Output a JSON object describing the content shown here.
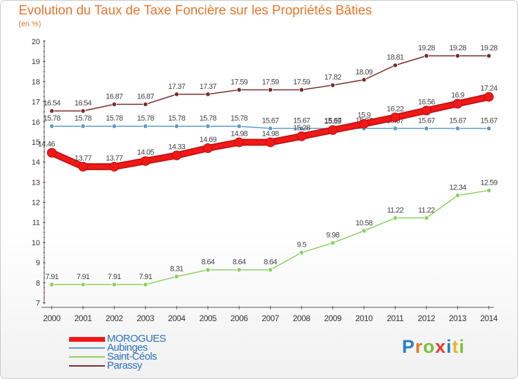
{
  "title": "Evolution du Taux de Taxe Foncière sur les Propriétés Bâties",
  "subtitle": "(en %)",
  "logo": {
    "letters": [
      "P",
      "r",
      "o",
      "x",
      "i",
      "t",
      "i"
    ],
    "colors": [
      "#2a7fc4",
      "#e8762a",
      "#7bbf3a",
      "#e83a2a",
      "#2a7fc4",
      "#e8b42a",
      "#7bbf3a"
    ]
  },
  "chart_data": {
    "type": "line",
    "x": [
      "2000",
      "2001",
      "2002",
      "2003",
      "2004",
      "2005",
      "2006",
      "2007",
      "2008",
      "2009",
      "2010",
      "2011",
      "2012",
      "2013",
      "2014"
    ],
    "y_ticks": [
      "7",
      "8",
      "9",
      "10",
      "11",
      "12",
      "13",
      "14",
      "15",
      "16",
      "17",
      "18",
      "19",
      "20"
    ],
    "ylim": [
      7,
      20
    ],
    "grid": false,
    "legend_position": "bottom-left",
    "series": [
      {
        "name": "Parassy",
        "color": "#7a2a2a",
        "style": "thin",
        "values": [
          16.54,
          16.54,
          16.87,
          16.87,
          17.37,
          17.37,
          17.59,
          17.59,
          17.59,
          17.82,
          18.09,
          18.81,
          19.28,
          19.28,
          19.28
        ],
        "labels": [
          "16.54",
          "16.54",
          "16.87",
          "16.87",
          "17.37",
          "17.37",
          "17.59",
          "17.59",
          "17.59",
          "17.82",
          "18.09",
          "18.81",
          "19.28",
          "19.28",
          "19.28"
        ]
      },
      {
        "name": "Aubinges",
        "color": "#5b9bc8",
        "style": "thin",
        "values": [
          15.78,
          15.78,
          15.78,
          15.78,
          15.78,
          15.78,
          15.78,
          15.67,
          15.67,
          15.67,
          15.67,
          15.67,
          15.67,
          15.67,
          15.67
        ],
        "labels": [
          "15.78",
          "15.78",
          "15.78",
          "15.78",
          "15.78",
          "15.78",
          "15.78",
          "15.67",
          "15.67",
          "15.67",
          "15.67",
          "15.67",
          "15.67",
          "15.67",
          "15.67"
        ]
      },
      {
        "name": "Saint-Céols",
        "color": "#8cd15e",
        "style": "thin",
        "values": [
          7.91,
          7.91,
          7.91,
          7.91,
          8.31,
          8.64,
          8.64,
          8.64,
          9.5,
          9.98,
          10.58,
          11.22,
          11.22,
          12.34,
          12.59
        ],
        "labels": [
          "7.91",
          "7.91",
          "7.91",
          "7.91",
          "8.31",
          "8.64",
          "8.64",
          "8.64",
          "9.5",
          "9.98",
          "10.58",
          "11.22",
          "11.22",
          "12.34",
          "12.59"
        ]
      },
      {
        "name": "MOROGUES",
        "color": "#f01818",
        "style": "thick",
        "values": [
          14.46,
          13.77,
          13.77,
          14.05,
          14.33,
          14.69,
          14.98,
          14.98,
          15.28,
          15.59,
          15.9,
          16.22,
          16.56,
          16.9,
          17.24
        ],
        "labels": [
          "14.46",
          "13.77",
          "13.77",
          "14.05",
          "14.33",
          "14.69",
          "14.98",
          "14.98",
          "15.28",
          "15.59",
          "15.9",
          "16.22",
          "16.56",
          "16.9",
          "17.24"
        ]
      }
    ],
    "legend": [
      {
        "name": "MOROGUES",
        "color": "#f01818",
        "style": "thick"
      },
      {
        "name": "Aubinges",
        "color": "#5b9bc8",
        "style": "thin"
      },
      {
        "name": "Saint-Céols",
        "color": "#8cd15e",
        "style": "thin"
      },
      {
        "name": "Parassy",
        "color": "#7a2a2a",
        "style": "thin"
      }
    ]
  }
}
